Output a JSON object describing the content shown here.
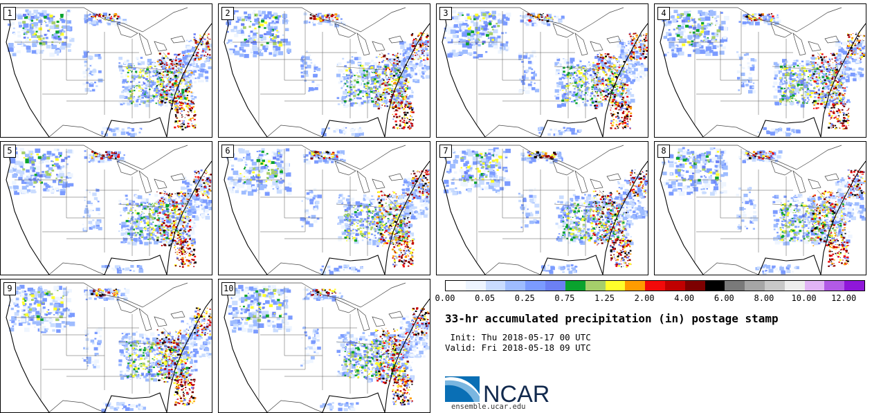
{
  "members": [
    {
      "label": "1"
    },
    {
      "label": "2"
    },
    {
      "label": "3"
    },
    {
      "label": "4"
    },
    {
      "label": "5"
    },
    {
      "label": "6"
    },
    {
      "label": "7"
    },
    {
      "label": "8"
    },
    {
      "label": "9"
    },
    {
      "label": "10"
    }
  ],
  "legend": {
    "colors": [
      "#ffffff",
      "#eef5ff",
      "#c9dcff",
      "#9ebcff",
      "#7b9bff",
      "#6c80f4",
      "#0aa32e",
      "#a6cf6b",
      "#ffff2b",
      "#ff9c00",
      "#f20a0a",
      "#c00000",
      "#7d0000",
      "#000000",
      "#7a7a7a",
      "#a6a6a6",
      "#c8c8c8",
      "#eeeeee",
      "#e1b4f5",
      "#b25ae6",
      "#8f17d9"
    ],
    "ticks": [
      "0.00",
      "0.05",
      "0.25",
      "0.75",
      "1.25",
      "2.00",
      "4.00",
      "6.00",
      "8.00",
      "10.00",
      "12.00"
    ]
  },
  "title": "33-hr accumulated precipitation (in) postage stamp",
  "init_line": " Init: Thu 2018-05-17 00 UTC",
  "valid_line": "Valid: Fri 2018-05-18 09 UTC",
  "logo_text": "NCAR",
  "site": "ensemble.ucar.edu"
}
